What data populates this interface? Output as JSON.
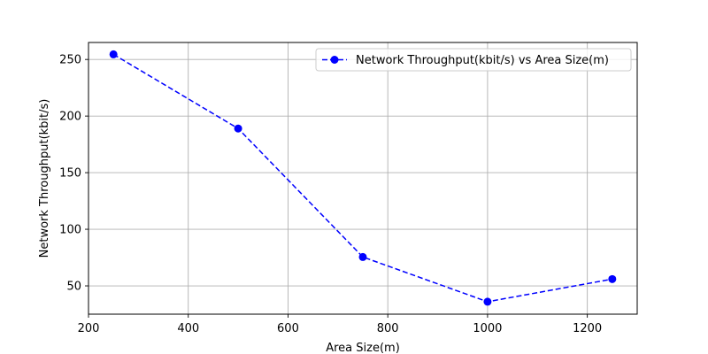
{
  "chart_data": {
    "type": "line",
    "title": "",
    "xlabel": "Area Size(m)",
    "ylabel": "Network Throughput(kbit/s)",
    "xlim": [
      200,
      1300
    ],
    "ylim": [
      25,
      265
    ],
    "xticks": [
      200,
      400,
      600,
      800,
      1000,
      1200
    ],
    "yticks": [
      50,
      100,
      150,
      200,
      250
    ],
    "grid": true,
    "legend_position": "top-right",
    "series": [
      {
        "name": "Network Throughput(kbit/s) vs Area Size(m)",
        "x": [
          250,
          500,
          750,
          1000,
          1250
        ],
        "y": [
          254.5,
          189,
          75.5,
          36,
          56
        ],
        "color": "#0000ff",
        "line_style": "dashed",
        "marker": "circle"
      }
    ]
  }
}
